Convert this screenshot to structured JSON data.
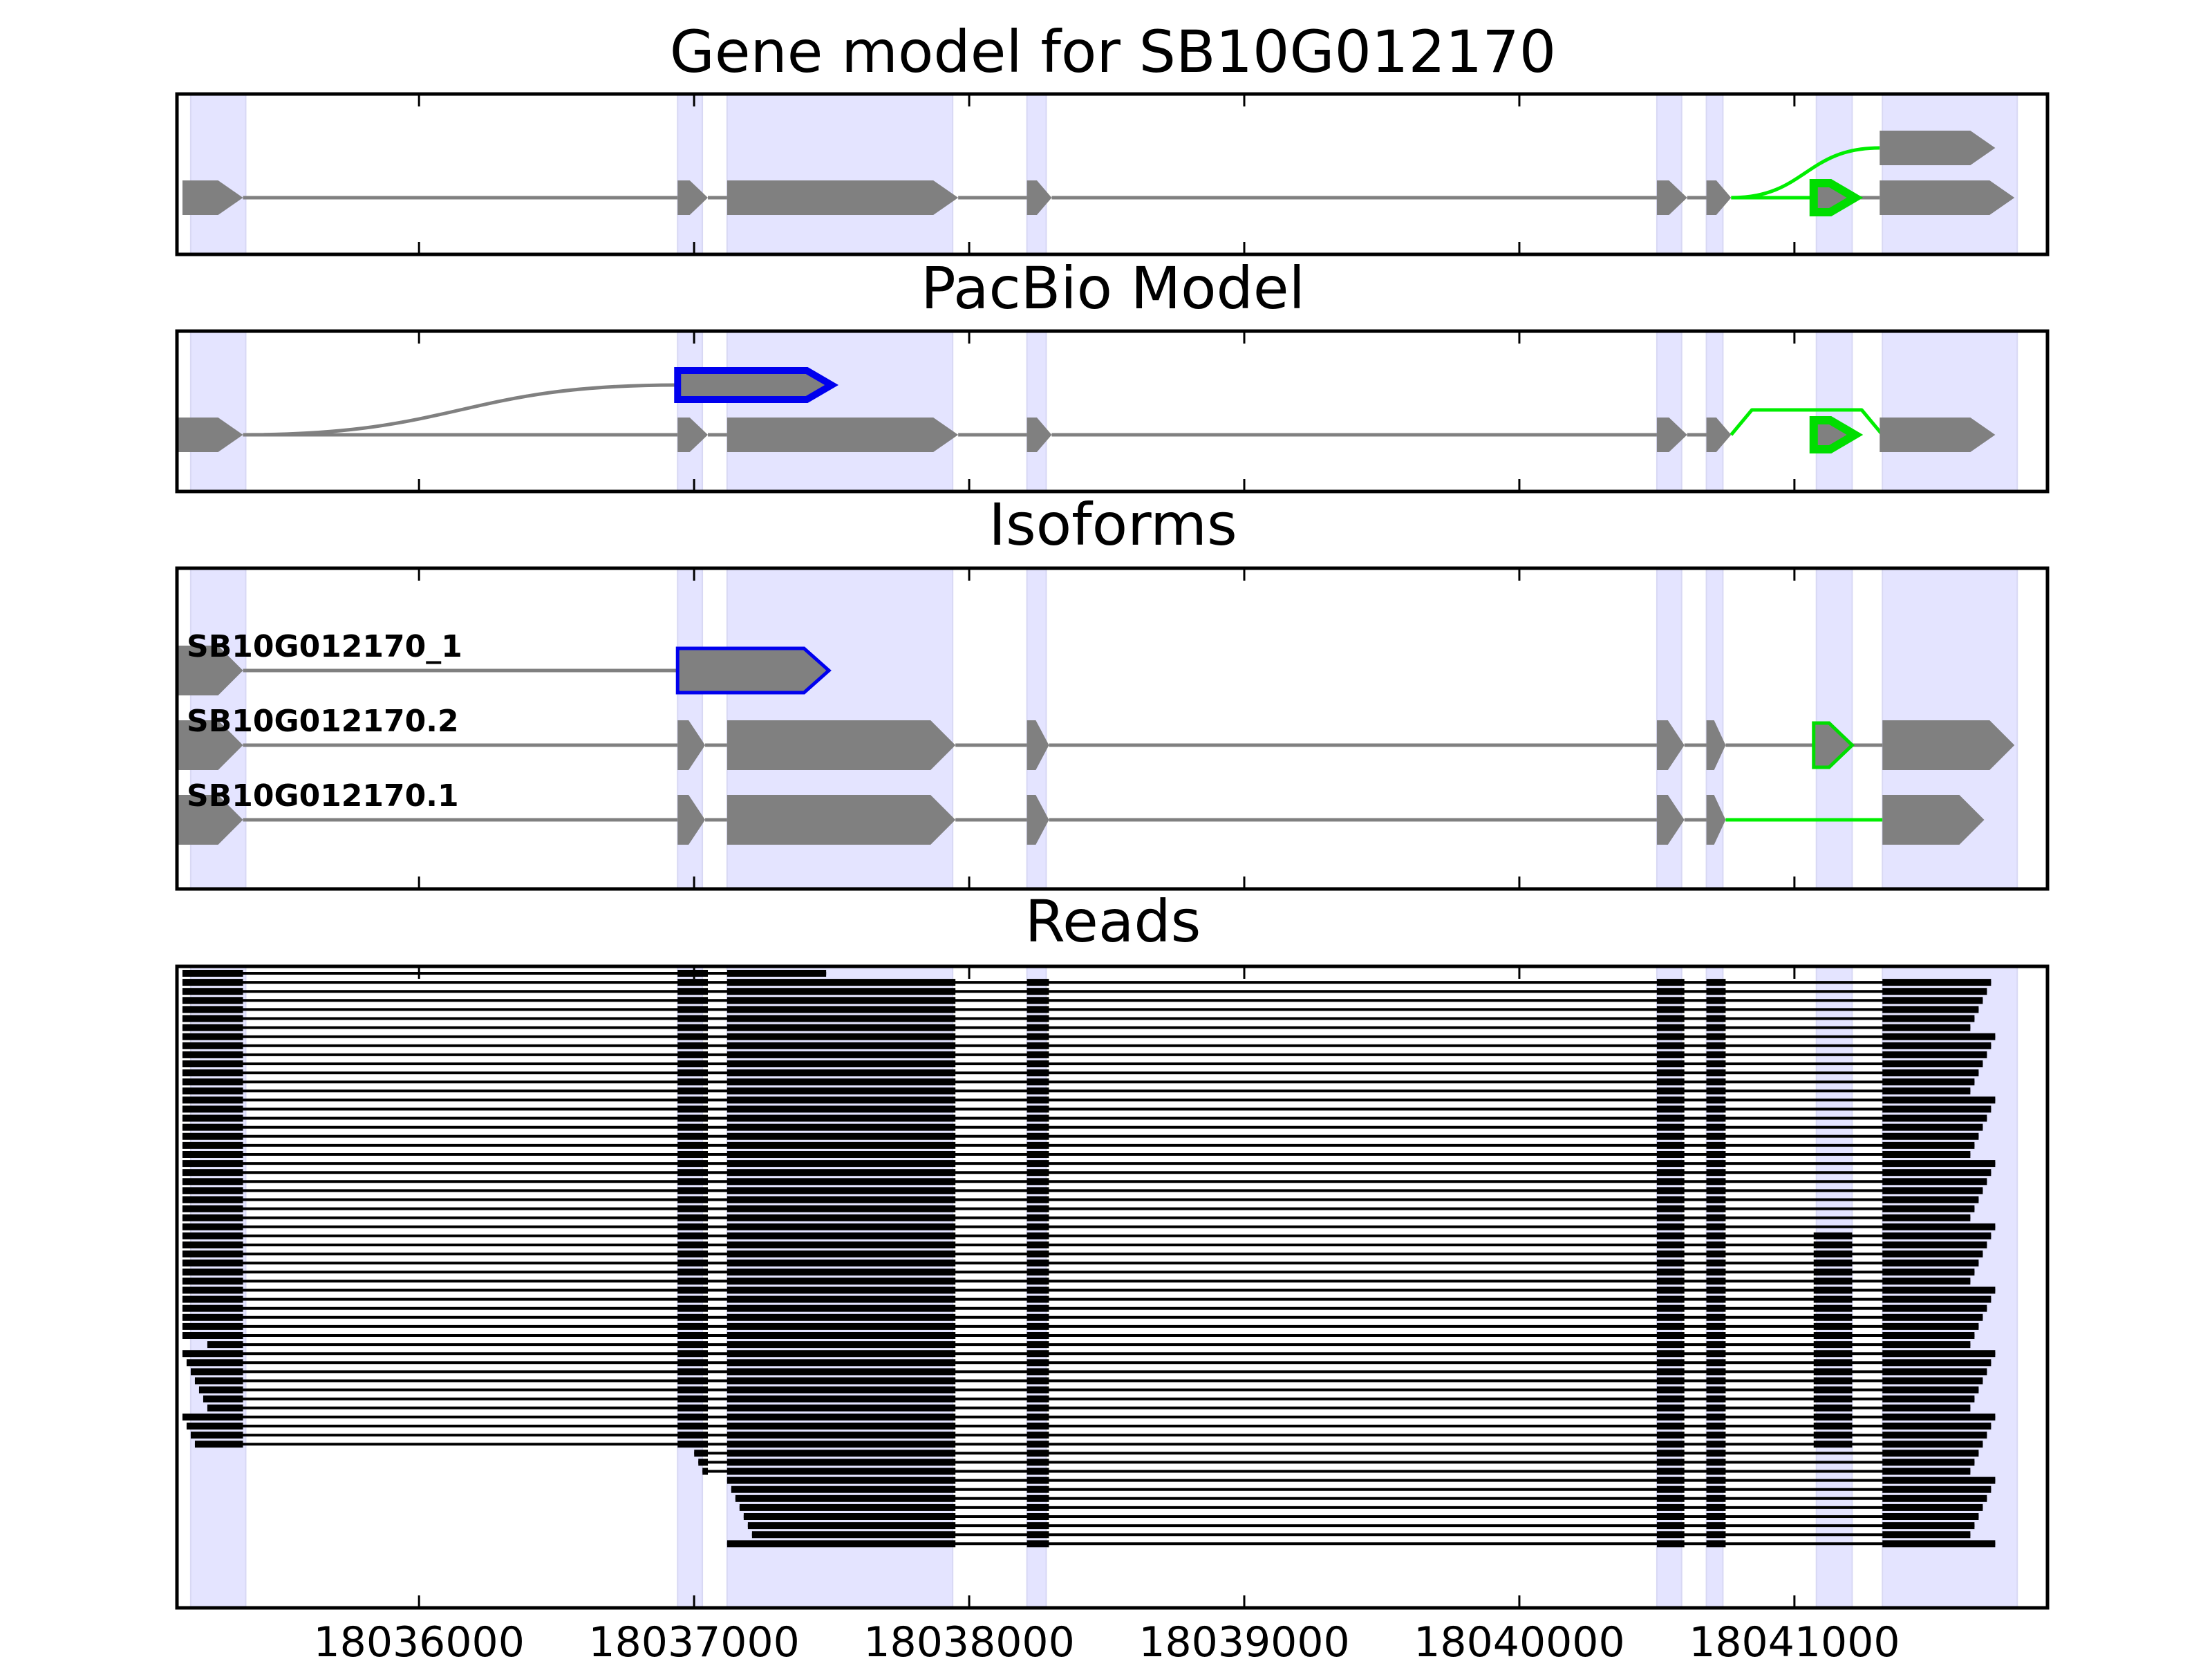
{
  "chart_data": {
    "type": "gene-structure",
    "title": "Gene model for SB10G012170",
    "xlim": [
      18035120,
      18041920
    ],
    "x_ticks": [
      18036000,
      18037000,
      18038000,
      18039000,
      18040000,
      18041000
    ],
    "x_tick_labels": [
      "18036000",
      "18037000",
      "18038000",
      "18039000",
      "18040000",
      "18041000"
    ],
    "exon_regions": [
      [
        18035170,
        18035370
      ],
      [
        18036940,
        18037030
      ],
      [
        18037120,
        18037940
      ],
      [
        18038210,
        18038280
      ],
      [
        18040500,
        18040590
      ],
      [
        18040680,
        18040740
      ],
      [
        18041080,
        18041210
      ],
      [
        18041320,
        18041810
      ]
    ],
    "colors": {
      "exon": "#808080",
      "intron": "#808080",
      "alt_exon": "#00dd00",
      "alt_junction": "#00ee00",
      "pacbio_exon": "#0000ee",
      "highlight": "#e4e4ff",
      "read": "#000000"
    },
    "panels": [
      {
        "title": "Gene model for SB10G012170",
        "rows": [
          {
            "exons": [
              [
                18035140,
                18035360
              ],
              [
                18036940,
                18037050
              ],
              [
                18037120,
                18037960
              ],
              [
                18038210,
                18038300
              ],
              [
                18040500,
                18040610
              ],
              [
                18040680,
                18040770
              ],
              [
                18041070,
                18041220
              ],
              [
                18041310,
                18041800
              ]
            ],
            "alt_exons": [
              [
                18041070,
                18041220
              ]
            ],
            "alt_introns": [
              [
                18040770,
                18041070
              ]
            ]
          },
          {
            "exons": [
              [
                18041310,
                18041730
              ]
            ],
            "junction_from": 18040770,
            "junction_color": "alt_junction"
          }
        ]
      },
      {
        "title": "PacBio Model",
        "rows": [
          {
            "exons": [
              [
                18035120,
                18035360
              ],
              [
                18036940,
                18037050
              ],
              [
                18037120,
                18037960
              ],
              [
                18038210,
                18038300
              ],
              [
                18040500,
                18040610
              ],
              [
                18040680,
                18040770
              ],
              [
                18041070,
                18041220
              ],
              [
                18041310,
                18041730
              ]
            ],
            "alt_exons": [
              [
                18041070,
                18041220
              ]
            ],
            "alt_arc": [
              18040770,
              18041320
            ]
          },
          {
            "exons": [
              [
                18036940,
                18037500
              ]
            ],
            "pacbio_exons": [
              [
                18036940,
                18037500
              ]
            ],
            "junction_from": 18035360,
            "junction_color": "intron"
          }
        ]
      },
      {
        "title": "Isoforms",
        "rows": [
          {
            "label": "SB10G012170_1",
            "exons": [
              [
                18035120,
                18035360
              ],
              [
                18036940,
                18037490
              ]
            ],
            "pacbio_exons": [
              [
                18036940,
                18037490
              ]
            ]
          },
          {
            "label": "SB10G012170.2",
            "exons": [
              [
                18035120,
                18035360
              ],
              [
                18036940,
                18037040
              ],
              [
                18037120,
                18037950
              ],
              [
                18038210,
                18038290
              ],
              [
                18040500,
                18040600
              ],
              [
                18040680,
                18040750
              ],
              [
                18041070,
                18041210
              ],
              [
                18041320,
                18041800
              ]
            ],
            "alt_exons": [
              [
                18041070,
                18041210
              ]
            ]
          },
          {
            "label": "SB10G012170.1",
            "exons": [
              [
                18035120,
                18035360
              ],
              [
                18036940,
                18037040
              ],
              [
                18037120,
                18037950
              ],
              [
                18038210,
                18038290
              ],
              [
                18040500,
                18040600
              ],
              [
                18040680,
                18040750
              ],
              [
                18041320,
                18041690
              ]
            ],
            "alt_introns": [
              [
                18040750,
                18041320
              ]
            ]
          }
        ]
      },
      {
        "title": "Reads",
        "read_count": 64,
        "reads": [
          {
            "segments": [
              [
                18035140,
                18035360
              ],
              [
                18036940,
                18037050
              ],
              [
                18037120,
                18037480
              ]
            ]
          },
          {
            "segments": [
              [
                18035140,
                18035360
              ],
              [
                18036940,
                18037050
              ],
              [
                18037120,
                18037950
              ],
              [
                18038210,
                18038290
              ],
              [
                18040500,
                18040600
              ],
              [
                18040680,
                18040750
              ],
              [
                18041320,
                18041730
              ]
            ],
            "count": 28
          },
          {
            "segments": [
              [
                18035140,
                18035360
              ],
              [
                18036940,
                18037050
              ],
              [
                18037120,
                18037950
              ],
              [
                18038210,
                18038290
              ],
              [
                18040500,
                18040600
              ],
              [
                18040680,
                18040750
              ],
              [
                18041070,
                18041210
              ],
              [
                18041320,
                18041730
              ]
            ],
            "count": 24
          },
          {
            "segments": [
              [
                18036940,
                18037050
              ],
              [
                18037120,
                18037950
              ],
              [
                18038210,
                18038290
              ],
              [
                18040500,
                18040600
              ],
              [
                18040680,
                18040750
              ],
              [
                18041320,
                18041730
              ]
            ],
            "count": 3
          },
          {
            "segments": [
              [
                18037120,
                18037950
              ],
              [
                18038210,
                18038290
              ],
              [
                18040500,
                18040600
              ],
              [
                18040680,
                18040750
              ],
              [
                18041320,
                18041730
              ]
            ],
            "count": 8
          }
        ]
      }
    ]
  }
}
